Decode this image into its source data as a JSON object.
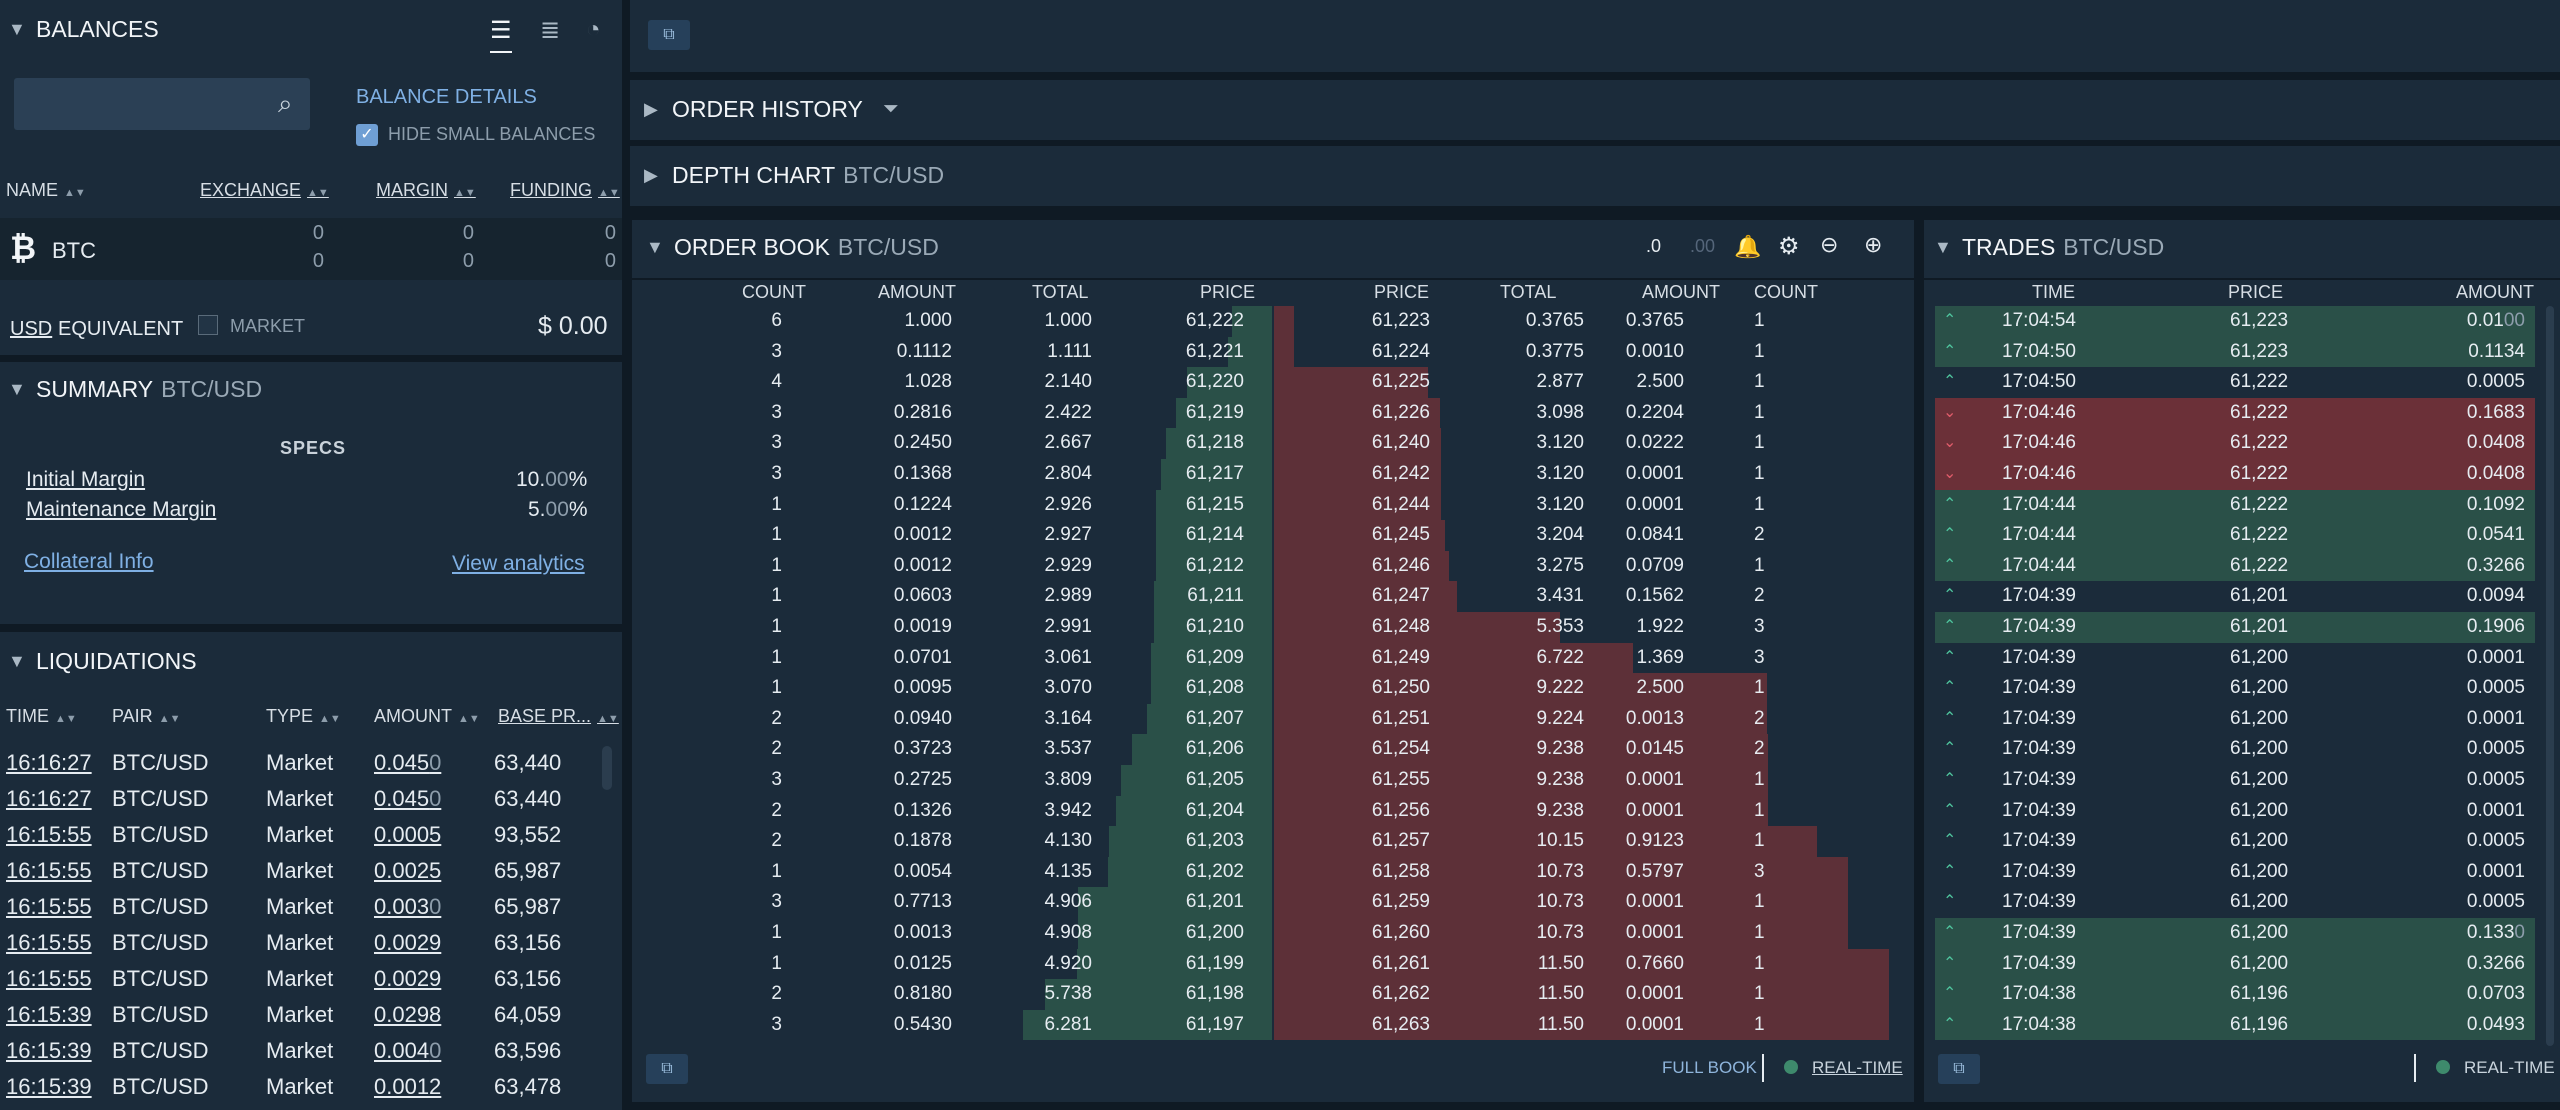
{
  "balances": {
    "title": "BALANCES",
    "search_placeholder": "",
    "details_link": "BALANCE DETAILS",
    "hide_small_label": "HIDE SMALL BALANCES",
    "columns": [
      "NAME",
      "EXCHANGE",
      "MARGIN",
      "FUNDING"
    ],
    "rows": [
      {
        "symbol": "₿",
        "name": "BTC",
        "exchange": [
          "0",
          "0"
        ],
        "margin": [
          "0",
          "0"
        ],
        "funding": [
          "0",
          "0"
        ]
      }
    ],
    "usd_label": "USD",
    "equivalent_label": "EQUIVALENT",
    "market_label": "MARKET",
    "total": "$ 0.00"
  },
  "summary": {
    "title": "SUMMARY",
    "pair": "BTC/USD",
    "specs_label": "SPECS",
    "initial_margin_label": "Initial Margin",
    "initial_margin_value": "10.",
    "initial_margin_dim": "00",
    "initial_margin_pct": "%",
    "maint_margin_label": "Maintenance Margin",
    "maint_margin_value": "5.",
    "maint_margin_dim": "00",
    "maint_margin_pct": "%",
    "collateral_link": "Collateral Info",
    "analytics_link": "View analytics"
  },
  "liquidations": {
    "title": "LIQUIDATIONS",
    "columns": [
      "TIME",
      "PAIR",
      "TYPE",
      "AMOUNT",
      "BASE PR..."
    ],
    "rows": [
      {
        "time": "16:16:27",
        "pair": "BTC/USD",
        "type": "Market",
        "amount": "0.045",
        "amount_dim": "0",
        "price": "63,440"
      },
      {
        "time": "16:16:27",
        "pair": "BTC/USD",
        "type": "Market",
        "amount": "0.045",
        "amount_dim": "0",
        "price": "63,440"
      },
      {
        "time": "16:15:55",
        "pair": "BTC/USD",
        "type": "Market",
        "amount": "0.0005",
        "amount_dim": "",
        "price": "93,552"
      },
      {
        "time": "16:15:55",
        "pair": "BTC/USD",
        "type": "Market",
        "amount": "0.0025",
        "amount_dim": "",
        "price": "65,987"
      },
      {
        "time": "16:15:55",
        "pair": "BTC/USD",
        "type": "Market",
        "amount": "0.003",
        "amount_dim": "0",
        "price": "65,987"
      },
      {
        "time": "16:15:55",
        "pair": "BTC/USD",
        "type": "Market",
        "amount": "0.0029",
        "amount_dim": "",
        "price": "63,156"
      },
      {
        "time": "16:15:55",
        "pair": "BTC/USD",
        "type": "Market",
        "amount": "0.0029",
        "amount_dim": "",
        "price": "63,156"
      },
      {
        "time": "16:15:39",
        "pair": "BTC/USD",
        "type": "Market",
        "amount": "0.0298",
        "amount_dim": "",
        "price": "64,059"
      },
      {
        "time": "16:15:39",
        "pair": "BTC/USD",
        "type": "Market",
        "amount": "0.004",
        "amount_dim": "0",
        "price": "63,596"
      },
      {
        "time": "16:15:39",
        "pair": "BTC/USD",
        "type": "Market",
        "amount": "0.0012",
        "amount_dim": "",
        "price": "63,478"
      }
    ]
  },
  "order_history": {
    "title": "ORDER HISTORY"
  },
  "depth_chart": {
    "title": "DEPTH CHART",
    "pair": "BTC/USD"
  },
  "order_book": {
    "title": "ORDER BOOK",
    "pair": "BTC/USD",
    "decimals_less": ".0",
    "decimals_more": ".00",
    "bid_columns": [
      "COUNT",
      "AMOUNT",
      "TOTAL",
      "PRICE"
    ],
    "ask_columns": [
      "PRICE",
      "TOTAL",
      "AMOUNT",
      "COUNT"
    ],
    "max_total": 11.5,
    "bids": [
      {
        "count": "6",
        "amount": "1.000",
        "total": "1.000",
        "price": "61,222",
        "total_num": 1.0
      },
      {
        "count": "3",
        "amount": "0.1112",
        "total": "1.111",
        "price": "61,221",
        "total_num": 1.111
      },
      {
        "count": "4",
        "amount": "1.028",
        "total": "2.140",
        "price": "61,220",
        "total_num": 2.14
      },
      {
        "count": "3",
        "amount": "0.2816",
        "total": "2.422",
        "price": "61,219",
        "total_num": 2.422
      },
      {
        "count": "3",
        "amount": "0.2450",
        "total": "2.667",
        "price": "61,218",
        "total_num": 2.667
      },
      {
        "count": "3",
        "amount": "0.1368",
        "total": "2.804",
        "price": "61,217",
        "total_num": 2.804
      },
      {
        "count": "1",
        "amount": "0.1224",
        "total": "2.926",
        "price": "61,215",
        "total_num": 2.926
      },
      {
        "count": "1",
        "amount": "0.0012",
        "total": "2.927",
        "price": "61,214",
        "total_num": 2.927
      },
      {
        "count": "1",
        "amount": "0.0012",
        "total": "2.929",
        "price": "61,212",
        "total_num": 2.929
      },
      {
        "count": "1",
        "amount": "0.0603",
        "total": "2.989",
        "price": "61,211",
        "total_num": 2.989
      },
      {
        "count": "1",
        "amount": "0.0019",
        "total": "2.991",
        "price": "61,210",
        "total_num": 2.991
      },
      {
        "count": "1",
        "amount": "0.0701",
        "total": "3.061",
        "price": "61,209",
        "total_num": 3.061
      },
      {
        "count": "1",
        "amount": "0.0095",
        "total": "3.070",
        "price": "61,208",
        "total_num": 3.07
      },
      {
        "count": "2",
        "amount": "0.0940",
        "total": "3.164",
        "price": "61,207",
        "total_num": 3.164
      },
      {
        "count": "2",
        "amount": "0.3723",
        "total": "3.537",
        "price": "61,206",
        "total_num": 3.537
      },
      {
        "count": "3",
        "amount": "0.2725",
        "total": "3.809",
        "price": "61,205",
        "total_num": 3.809
      },
      {
        "count": "2",
        "amount": "0.1326",
        "total": "3.942",
        "price": "61,204",
        "total_num": 3.942
      },
      {
        "count": "2",
        "amount": "0.1878",
        "total": "4.130",
        "price": "61,203",
        "total_num": 4.13
      },
      {
        "count": "1",
        "amount": "0.0054",
        "total": "4.135",
        "price": "61,202",
        "total_num": 4.135
      },
      {
        "count": "3",
        "amount": "0.7713",
        "total": "4.906",
        "price": "61,201",
        "total_num": 4.906
      },
      {
        "count": "1",
        "amount": "0.0013",
        "total": "4.908",
        "price": "61,200",
        "total_num": 4.908
      },
      {
        "count": "1",
        "amount": "0.0125",
        "total": "4.920",
        "price": "61,199",
        "total_num": 4.92
      },
      {
        "count": "2",
        "amount": "0.8180",
        "total": "5.738",
        "price": "61,198",
        "total_num": 5.738
      },
      {
        "count": "3",
        "amount": "0.5430",
        "total": "6.281",
        "price": "61,197",
        "total_num": 6.281
      }
    ],
    "asks": [
      {
        "price": "61,223",
        "total": "0.3765",
        "amount": "0.3765",
        "count": "1",
        "total_num": 0.3765
      },
      {
        "price": "61,224",
        "total": "0.3775",
        "amount": "0.0010",
        "count": "1",
        "total_num": 0.3775
      },
      {
        "price": "61,225",
        "total": "2.877",
        "amount": "2.500",
        "count": "1",
        "total_num": 2.877
      },
      {
        "price": "61,226",
        "total": "3.098",
        "amount": "0.2204",
        "count": "1",
        "total_num": 3.098
      },
      {
        "price": "61,240",
        "total": "3.120",
        "amount": "0.0222",
        "count": "1",
        "total_num": 3.12
      },
      {
        "price": "61,242",
        "total": "3.120",
        "amount": "0.0001",
        "count": "1",
        "total_num": 3.12
      },
      {
        "price": "61,244",
        "total": "3.120",
        "amount": "0.0001",
        "count": "1",
        "total_num": 3.12
      },
      {
        "price": "61,245",
        "total": "3.204",
        "amount": "0.0841",
        "count": "2",
        "total_num": 3.204
      },
      {
        "price": "61,246",
        "total": "3.275",
        "amount": "0.0709",
        "count": "1",
        "total_num": 3.275
      },
      {
        "price": "61,247",
        "total": "3.431",
        "amount": "0.1562",
        "count": "2",
        "total_num": 3.431
      },
      {
        "price": "61,248",
        "total": "5.353",
        "amount": "1.922",
        "count": "3",
        "total_num": 5.353
      },
      {
        "price": "61,249",
        "total": "6.722",
        "amount": "1.369",
        "count": "3",
        "total_num": 6.722
      },
      {
        "price": "61,250",
        "total": "9.222",
        "amount": "2.500",
        "count": "1",
        "total_num": 9.222
      },
      {
        "price": "61,251",
        "total": "9.224",
        "amount": "0.0013",
        "count": "2",
        "total_num": 9.224
      },
      {
        "price": "61,254",
        "total": "9.238",
        "amount": "0.0145",
        "count": "2",
        "total_num": 9.238
      },
      {
        "price": "61,255",
        "total": "9.238",
        "amount": "0.0001",
        "count": "1",
        "total_num": 9.238
      },
      {
        "price": "61,256",
        "total": "9.238",
        "amount": "0.0001",
        "count": "1",
        "total_num": 9.238
      },
      {
        "price": "61,257",
        "total": "10.15",
        "amount": "0.9123",
        "count": "1",
        "total_num": 10.15
      },
      {
        "price": "61,258",
        "total": "10.73",
        "amount": "0.5797",
        "count": "3",
        "total_num": 10.73
      },
      {
        "price": "61,259",
        "total": "10.73",
        "amount": "0.0001",
        "count": "1",
        "total_num": 10.73
      },
      {
        "price": "61,260",
        "total": "10.73",
        "amount": "0.0001",
        "count": "1",
        "total_num": 10.73
      },
      {
        "price": "61,261",
        "total": "11.50",
        "amount": "0.7660",
        "count": "1",
        "total_num": 11.5
      },
      {
        "price": "61,262",
        "total": "11.50",
        "amount": "0.0001",
        "count": "1",
        "total_num": 11.5
      },
      {
        "price": "61,263",
        "total": "11.50",
        "amount": "0.0001",
        "count": "1",
        "total_num": 11.5
      }
    ],
    "full_book_label": "FULL BOOK",
    "realtime_label": "REAL-TIME"
  },
  "trades": {
    "title": "TRADES",
    "pair": "BTC/USD",
    "columns": [
      "TIME",
      "PRICE",
      "AMOUNT"
    ],
    "rows": [
      {
        "side": "up",
        "time": "17:04:54",
        "price": "61,223",
        "amount": "0.01",
        "amount_dim": "00"
      },
      {
        "side": "up",
        "time": "17:04:50",
        "price": "61,223",
        "amount": "0.1134",
        "amount_dim": ""
      },
      {
        "side": "none",
        "time": "17:04:50",
        "price": "61,222",
        "amount": "0.0005",
        "amount_dim": ""
      },
      {
        "side": "dn",
        "time": "17:04:46",
        "price": "61,222",
        "amount": "0.1683",
        "amount_dim": ""
      },
      {
        "side": "dn",
        "time": "17:04:46",
        "price": "61,222",
        "amount": "0.0408",
        "amount_dim": ""
      },
      {
        "side": "dn",
        "time": "17:04:46",
        "price": "61,222",
        "amount": "0.0408",
        "amount_dim": ""
      },
      {
        "side": "up",
        "time": "17:04:44",
        "price": "61,222",
        "amount": "0.1092",
        "amount_dim": ""
      },
      {
        "side": "up",
        "time": "17:04:44",
        "price": "61,222",
        "amount": "0.0541",
        "amount_dim": ""
      },
      {
        "side": "up",
        "time": "17:04:44",
        "price": "61,222",
        "amount": "0.3266",
        "amount_dim": ""
      },
      {
        "side": "none",
        "time": "17:04:39",
        "price": "61,201",
        "amount": "0.0094",
        "amount_dim": ""
      },
      {
        "side": "up",
        "time": "17:04:39",
        "price": "61,201",
        "amount": "0.1906",
        "amount_dim": ""
      },
      {
        "side": "none",
        "time": "17:04:39",
        "price": "61,200",
        "amount": "0.0001",
        "amount_dim": ""
      },
      {
        "side": "none",
        "time": "17:04:39",
        "price": "61,200",
        "amount": "0.0005",
        "amount_dim": ""
      },
      {
        "side": "none",
        "time": "17:04:39",
        "price": "61,200",
        "amount": "0.0001",
        "amount_dim": ""
      },
      {
        "side": "none",
        "time": "17:04:39",
        "price": "61,200",
        "amount": "0.0005",
        "amount_dim": ""
      },
      {
        "side": "none",
        "time": "17:04:39",
        "price": "61,200",
        "amount": "0.0005",
        "amount_dim": ""
      },
      {
        "side": "none",
        "time": "17:04:39",
        "price": "61,200",
        "amount": "0.0001",
        "amount_dim": ""
      },
      {
        "side": "none",
        "time": "17:04:39",
        "price": "61,200",
        "amount": "0.0005",
        "amount_dim": ""
      },
      {
        "side": "none",
        "time": "17:04:39",
        "price": "61,200",
        "amount": "0.0001",
        "amount_dim": ""
      },
      {
        "side": "none",
        "time": "17:04:39",
        "price": "61,200",
        "amount": "0.0005",
        "amount_dim": ""
      },
      {
        "side": "up",
        "time": "17:04:39",
        "price": "61,200",
        "amount": "0.133",
        "amount_dim": "0"
      },
      {
        "side": "up",
        "time": "17:04:39",
        "price": "61,200",
        "amount": "0.3266",
        "amount_dim": ""
      },
      {
        "side": "up",
        "time": "17:04:38",
        "price": "61,196",
        "amount": "0.0703",
        "amount_dim": ""
      },
      {
        "side": "up",
        "time": "17:04:38",
        "price": "61,196",
        "amount": "0.0493",
        "amount_dim": ""
      }
    ],
    "realtime_label": "REAL-TIME"
  },
  "colors": {
    "bid_bar": "#2a5048",
    "ask_bar": "#5d3038",
    "up_row": "#2a5048",
    "down_row": "#6b3038",
    "link": "#7fb0e4"
  },
  "icons": [
    "chevron-down-icon",
    "chevron-right-icon",
    "list-icon",
    "pie-chart-icon",
    "search-icon",
    "filter-icon",
    "bell-icon",
    "gear-icon",
    "zoom-out-icon",
    "zoom-in-icon",
    "popout-icon",
    "bitcoin-icon",
    "sort-icon"
  ]
}
